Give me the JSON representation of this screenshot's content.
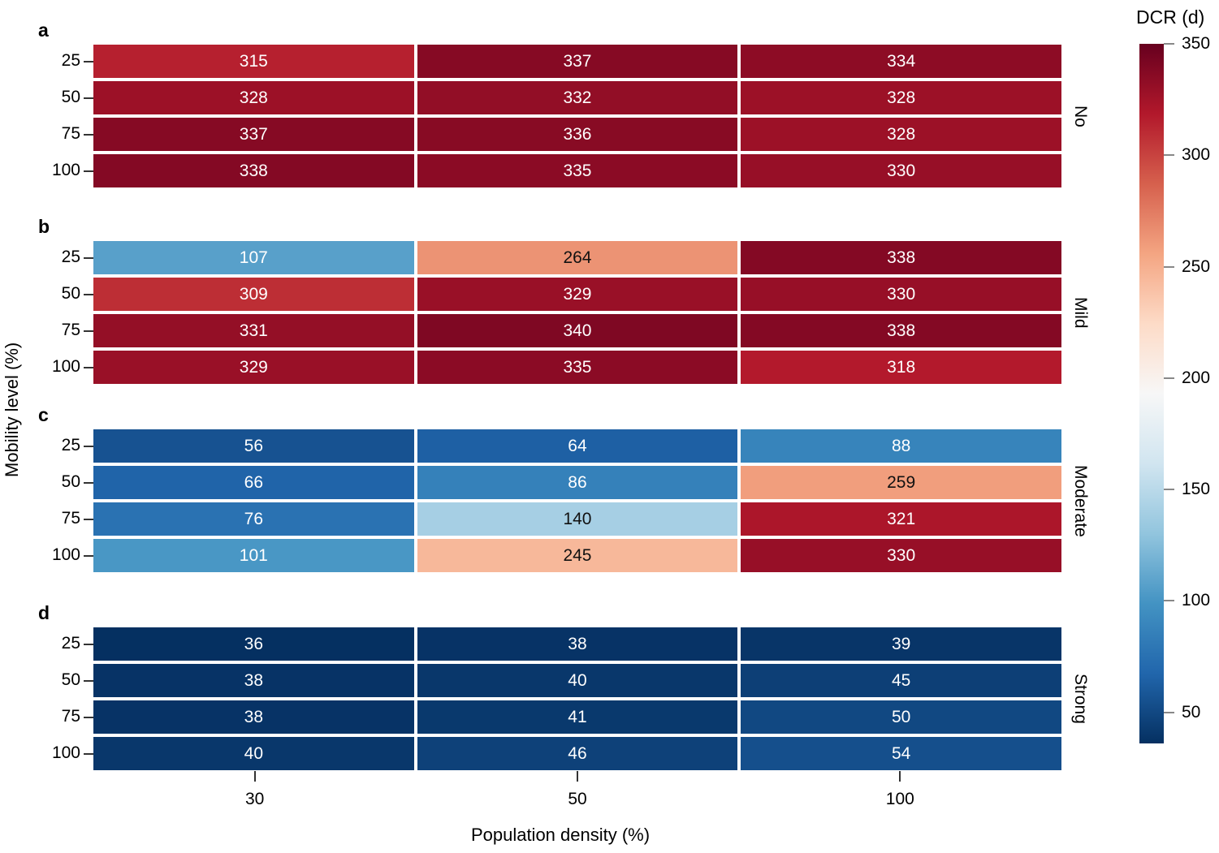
{
  "chart_data": {
    "type": "heatmap",
    "xlabel": "Population density (%)",
    "ylabel": "Mobility level (%)",
    "x_ticks": [
      "30",
      "50",
      "100"
    ],
    "y_ticks": [
      "25",
      "50",
      "75",
      "100"
    ],
    "colorbar": {
      "title": "DCR (d)",
      "ticks": [
        350,
        300,
        250,
        200,
        150,
        100,
        50
      ],
      "vmin": 36,
      "vmax": 350,
      "colormap": "RdBu_r",
      "anchor_colors": [
        "#053061",
        "#2166ac",
        "#4393c3",
        "#92c5de",
        "#d1e5f0",
        "#f7f7f7",
        "#fddbc7",
        "#f4a582",
        "#d6604d",
        "#b2182b",
        "#67001f"
      ]
    },
    "panels": [
      {
        "letter": "a",
        "label": "No",
        "values": [
          [
            315,
            337,
            334
          ],
          [
            328,
            332,
            328
          ],
          [
            337,
            336,
            328
          ],
          [
            338,
            335,
            330
          ]
        ]
      },
      {
        "letter": "b",
        "label": "Mild",
        "values": [
          [
            107,
            264,
            338
          ],
          [
            309,
            329,
            330
          ],
          [
            331,
            340,
            338
          ],
          [
            329,
            335,
            318
          ]
        ]
      },
      {
        "letter": "c",
        "label": "Moderate",
        "values": [
          [
            56,
            64,
            88
          ],
          [
            66,
            86,
            259
          ],
          [
            76,
            140,
            321
          ],
          [
            101,
            245,
            330
          ]
        ]
      },
      {
        "letter": "d",
        "label": "Strong",
        "values": [
          [
            36,
            38,
            39
          ],
          [
            38,
            40,
            45
          ],
          [
            38,
            41,
            50
          ],
          [
            40,
            46,
            54
          ]
        ]
      }
    ]
  }
}
